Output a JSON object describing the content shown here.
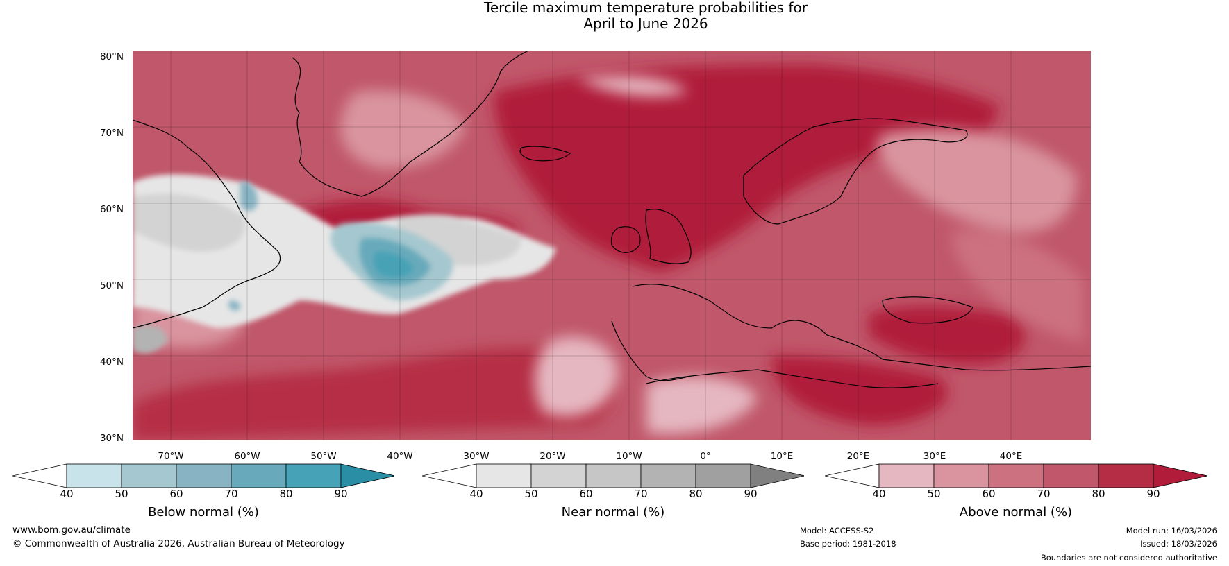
{
  "title": {
    "line1": "Tercile maximum temperature probabilities for",
    "line2": "April to June 2026"
  },
  "map": {
    "lat_labels": [
      "80°N",
      "70°N",
      "60°N",
      "50°N",
      "40°N",
      "30°N"
    ],
    "lon_labels": [
      "70°W",
      "60°W",
      "50°W",
      "40°W",
      "30°W",
      "20°W",
      "10°W",
      "0°",
      "10°E",
      "20°E",
      "30°E",
      "40°E"
    ]
  },
  "legends": [
    {
      "title": "Below normal (%)",
      "ticks": [
        "40",
        "50",
        "60",
        "70",
        "80",
        "90"
      ],
      "colors": [
        "#c9e3ea",
        "#a5c7cf",
        "#88b3c2",
        "#68aabb",
        "#46a2b6",
        "#2a8ea4"
      ]
    },
    {
      "title": "Near normal (%)",
      "ticks": [
        "40",
        "50",
        "60",
        "70",
        "80",
        "90"
      ],
      "colors": [
        "#e6e6e6",
        "#d3d3d3",
        "#c6c6c6",
        "#b3b3b3",
        "#a0a0a0",
        "#808080"
      ]
    },
    {
      "title": "Above normal (%)",
      "ticks": [
        "40",
        "50",
        "60",
        "70",
        "80",
        "90"
      ],
      "colors": [
        "#e5b7c0",
        "#d9949f",
        "#cc7180",
        "#c0576a",
        "#b52d45",
        "#b01c3a"
      ]
    }
  ],
  "footer": {
    "website": "www.bom.gov.au/climate",
    "copyright": "© Commonwealth of Australia 2026, Australian Bureau of Meteorology",
    "model": "Model: ACCESS-S2",
    "base_period": "Base period: 1981-2018",
    "model_run": "Model run: 16/03/2026",
    "issued": "Issued: 18/03/2026",
    "disclaimer": "Boundaries are not considered authoritative"
  }
}
